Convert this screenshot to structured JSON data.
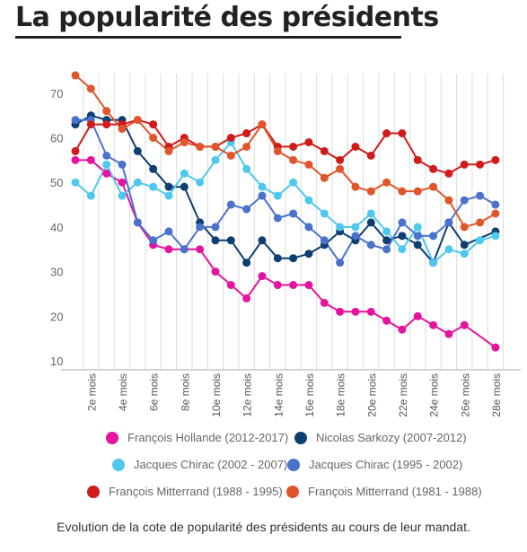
{
  "title": "La popularité des présidents",
  "caption": "Evolution de la cote de popularité des présidents au cours de leur mandat.",
  "chart_data": {
    "type": "line",
    "ylim": [
      7,
      78
    ],
    "yticks": [
      10,
      20,
      30,
      40,
      50,
      60,
      70
    ],
    "x": [
      1,
      2,
      3,
      4,
      5,
      6,
      7,
      8,
      9,
      10,
      11,
      12,
      13,
      14,
      15,
      16,
      17,
      18,
      19,
      20,
      21,
      22,
      23,
      24,
      25,
      26,
      27,
      28
    ],
    "xtick_labels": [
      {
        "x": 2,
        "label": "2e mois"
      },
      {
        "x": 4,
        "label": "4e mois"
      },
      {
        "x": 6,
        "label": "6e mois"
      },
      {
        "x": 8,
        "label": "8e mois"
      },
      {
        "x": 10,
        "label": "10e mois"
      },
      {
        "x": 12,
        "label": "12e mois"
      },
      {
        "x": 14,
        "label": "14e mois"
      },
      {
        "x": 16,
        "label": "16e mois"
      },
      {
        "x": 18,
        "label": "18e mois"
      },
      {
        "x": 20,
        "label": "20e mois"
      },
      {
        "x": 22,
        "label": "22e mois"
      },
      {
        "x": 24,
        "label": "24e mois"
      },
      {
        "x": 26,
        "label": "26e mois"
      },
      {
        "x": 28,
        "label": "28e mois"
      }
    ],
    "grid": "vertical lines at each month, horizontal axis line",
    "legend_position": "bottom",
    "series": [
      {
        "name": "François Hollande (2012-2017)",
        "color": "#e5139e",
        "values": [
          55,
          55,
          52,
          50,
          41,
          36,
          35,
          35,
          35,
          30,
          27,
          24,
          29,
          27,
          27,
          27,
          23,
          21,
          21,
          21,
          19,
          17,
          20,
          18,
          16,
          18,
          null,
          13
        ]
      },
      {
        "name": "Nicolas Sarkozy (2007-2012)",
        "color": "#0d3f72",
        "values": [
          63,
          65,
          64,
          64,
          57,
          53,
          49,
          49,
          41,
          37,
          37,
          32,
          37,
          33,
          33,
          34,
          36,
          39,
          37,
          41,
          37,
          38,
          36,
          32,
          41,
          36,
          null,
          39
        ]
      },
      {
        "name": "Jacques Chirac (2002 - 2007)",
        "color": "#4fc8ee",
        "values": [
          50,
          47,
          54,
          47,
          50,
          49,
          47,
          52,
          50,
          55,
          59,
          53,
          49,
          47,
          50,
          46,
          43,
          40,
          40,
          43,
          39,
          35,
          40,
          32,
          35,
          34,
          37,
          38
        ]
      },
      {
        "name": "Jacques Chirac (1995 - 2002)",
        "color": "#4a72cc",
        "values": [
          64,
          64,
          56,
          54,
          41,
          37,
          39,
          35,
          40,
          40,
          45,
          44,
          47,
          42,
          43,
          40,
          37,
          32,
          38,
          36,
          35,
          41,
          38,
          38,
          41,
          46,
          47,
          45
        ]
      },
      {
        "name": "François Mitterrand (1988 - 1995)",
        "color": "#d11a1a",
        "values": [
          57,
          63,
          63,
          63,
          64,
          63,
          58,
          60,
          58,
          58,
          60,
          61,
          63,
          58,
          58,
          59,
          57,
          55,
          58,
          56,
          61,
          61,
          55,
          53,
          52,
          54,
          54,
          55
        ]
      },
      {
        "name": "François Mitterrand (1981 - 1988)",
        "color": "#e0552a",
        "values": [
          74,
          71,
          66,
          62,
          64,
          60,
          57,
          59,
          58,
          58,
          56,
          58,
          63,
          57,
          55,
          54,
          51,
          53,
          49,
          48,
          50,
          48,
          48,
          49,
          46,
          40,
          41,
          43
        ]
      }
    ]
  }
}
